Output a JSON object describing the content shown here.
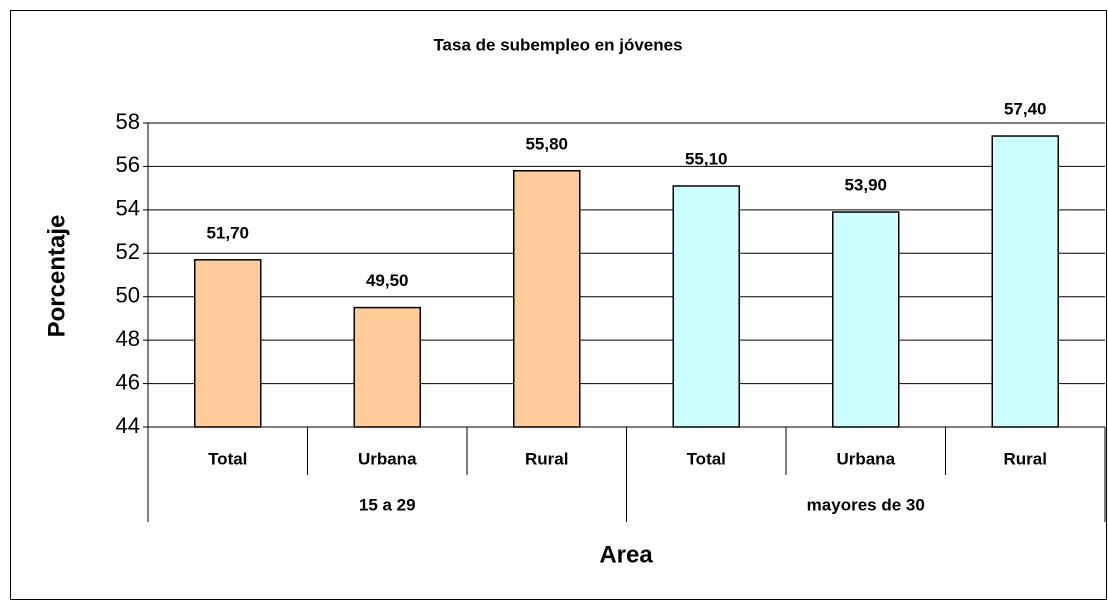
{
  "chart_data": {
    "type": "bar",
    "title": "Tasa de subempleo en jóvenes",
    "x_label": "Area",
    "y_label": "Porcentaje",
    "groups": [
      {
        "name": "15 a 29",
        "color": "#ffcc99",
        "categories": [
          "Total",
          "Urbana",
          "Rural"
        ],
        "values": [
          51.7,
          49.5,
          55.8
        ],
        "value_labels": [
          "51,70",
          "49,50",
          "55,80"
        ]
      },
      {
        "name": "mayores de 30",
        "color": "#ccffff",
        "categories": [
          "Total",
          "Urbana",
          "Rural"
        ],
        "values": [
          55.1,
          53.9,
          57.4
        ],
        "value_labels": [
          "55,10",
          "53,90",
          "57,40"
        ]
      }
    ],
    "ylim": [
      44,
      58
    ],
    "yticks": [
      44,
      46,
      48,
      50,
      52,
      54,
      56,
      58
    ],
    "grid": true
  }
}
